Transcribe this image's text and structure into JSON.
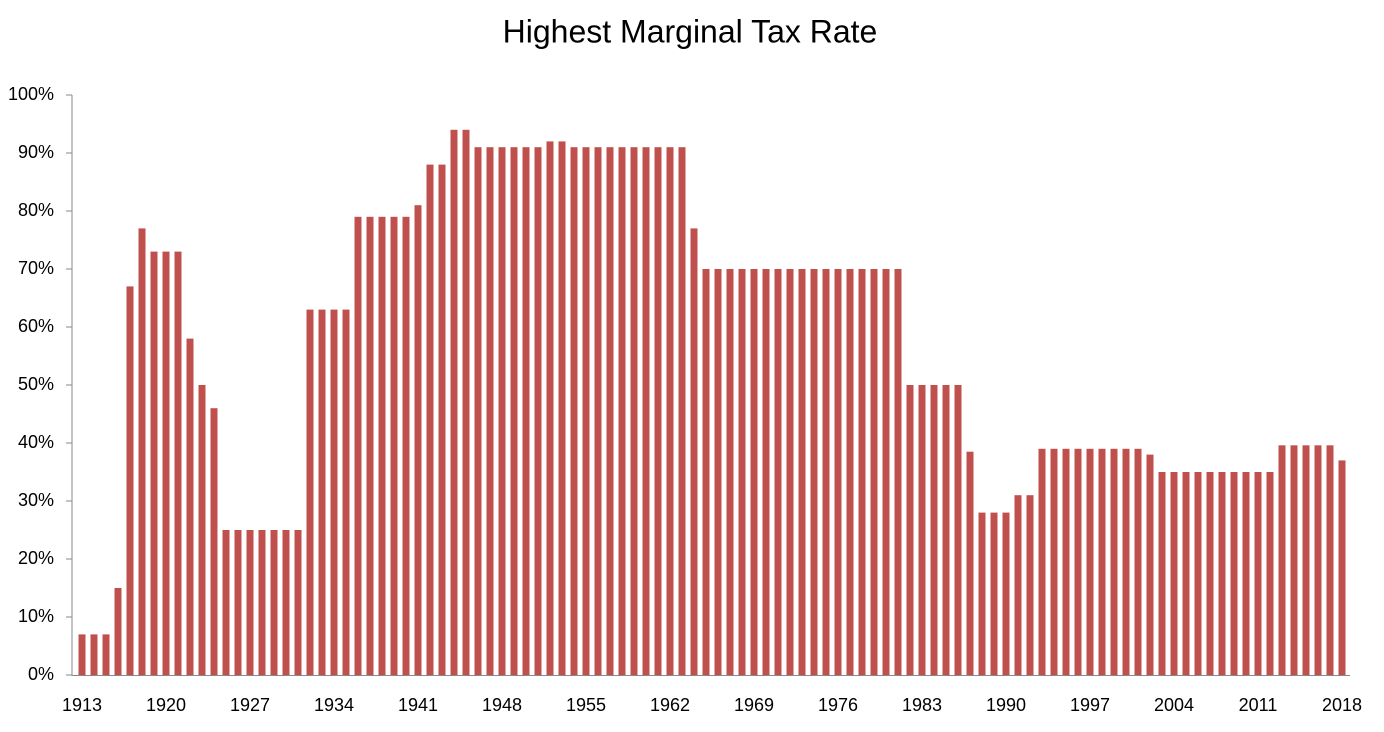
{
  "chart_data": {
    "type": "bar",
    "title": "Highest Marginal Tax Rate",
    "categories": [
      "1913",
      null,
      null,
      null,
      null,
      null,
      null,
      "1920",
      null,
      null,
      null,
      null,
      null,
      null,
      "1927",
      null,
      null,
      null,
      null,
      null,
      null,
      "1934",
      null,
      null,
      null,
      null,
      null,
      null,
      "1941",
      null,
      null,
      null,
      null,
      null,
      null,
      "1948",
      null,
      null,
      null,
      null,
      null,
      null,
      "1955",
      null,
      null,
      null,
      null,
      null,
      null,
      "1962",
      null,
      null,
      null,
      null,
      null,
      null,
      "1969",
      null,
      null,
      null,
      null,
      null,
      null,
      "1976",
      null,
      null,
      null,
      null,
      null,
      null,
      "1983",
      null,
      null,
      null,
      null,
      null,
      null,
      "1990",
      null,
      null,
      null,
      null,
      null,
      null,
      "1997",
      null,
      null,
      null,
      null,
      null,
      null,
      "2004",
      null,
      null,
      null,
      null,
      null,
      null,
      "2011",
      null,
      null,
      null,
      null,
      null,
      null,
      "2018"
    ],
    "values": [
      7,
      7,
      7,
      15,
      67,
      77,
      73,
      73,
      73,
      58,
      50,
      46,
      25,
      25,
      25,
      25,
      25,
      25,
      25,
      63,
      63,
      63,
      63,
      79,
      79,
      79,
      79,
      79,
      81,
      88,
      88,
      94,
      94,
      91,
      91,
      91,
      91,
      91,
      91,
      92,
      92,
      91,
      91,
      91,
      91,
      91,
      91,
      91,
      91,
      91,
      91,
      77,
      70,
      70,
      70,
      70,
      70,
      70,
      70,
      70,
      70,
      70,
      70,
      70,
      70,
      70,
      70,
      70,
      70,
      50,
      50,
      50,
      50,
      50,
      38.5,
      28,
      28,
      28,
      31,
      31,
      39,
      39,
      39,
      39,
      39,
      39,
      39,
      39,
      39,
      38,
      35,
      35,
      35,
      35,
      35,
      35,
      35,
      35,
      35,
      35,
      39.6,
      39.6,
      39.6,
      39.6,
      39.6,
      37
    ],
    "color": "#c0504d",
    "ylim": [
      0,
      100
    ],
    "yticks": [
      {
        "value": 0,
        "label": "0%"
      },
      {
        "value": 10,
        "label": "10%"
      },
      {
        "value": 20,
        "label": "20%"
      },
      {
        "value": 30,
        "label": "30%"
      },
      {
        "value": 40,
        "label": "40%"
      },
      {
        "value": 50,
        "label": "50%"
      },
      {
        "value": 60,
        "label": "60%"
      },
      {
        "value": 70,
        "label": "70%"
      },
      {
        "value": 80,
        "label": "80%"
      },
      {
        "value": 90,
        "label": "90%"
      },
      {
        "value": 100,
        "label": "100%"
      }
    ],
    "grid": false
  }
}
